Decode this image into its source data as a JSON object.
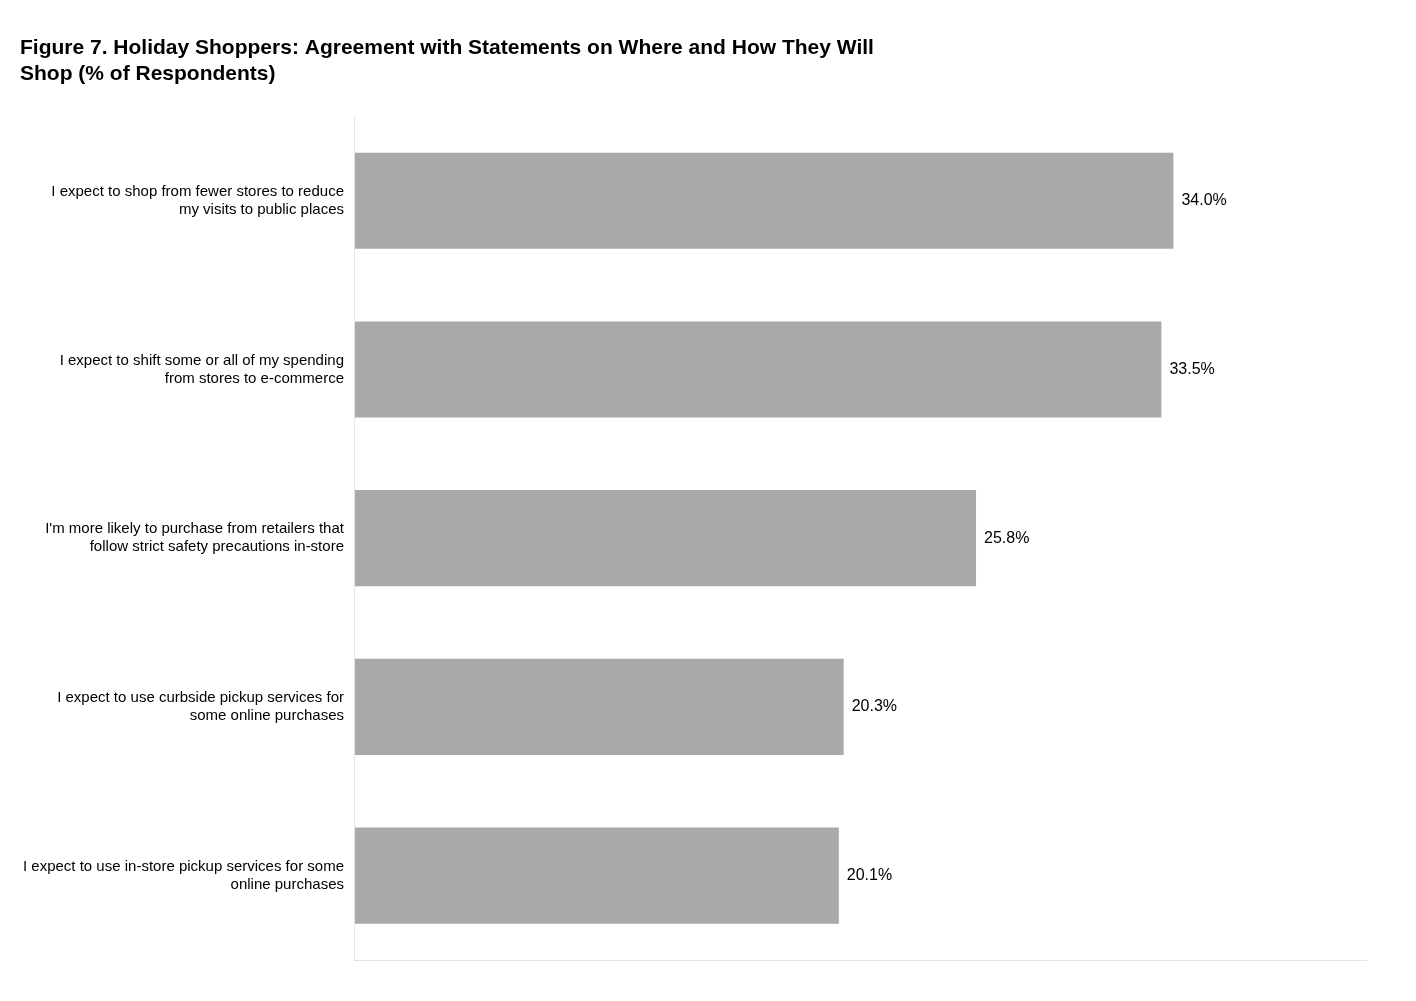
{
  "chart_data": {
    "type": "bar",
    "orientation": "horizontal",
    "title": "Figure 7. Holiday Shoppers: Agreement with Statements on Where and How They Will\nShop (% of Respondents)",
    "categories": [
      "I expect to use in-store pickup services for some\nonline purchases",
      "I expect to use curbside pickup services for\nsome online purchases",
      "I'm more likely to purchase from retailers that\nfollow strict safety precautions in-store",
      "I expect to shift some or all of my spending\nfrom stores to e-commerce",
      "I expect to shop from fewer stores to reduce\nmy visits to public places"
    ],
    "values": [
      20.1,
      20.3,
      25.8,
      33.5,
      34.0
    ],
    "value_labels": [
      "20.1%",
      "20.3%",
      "25.8%",
      "33.5%",
      "34.0%"
    ],
    "color": "#a9a9a9",
    "xlim": [
      0,
      42
    ],
    "grid": false,
    "data_labels": true,
    "tick_labels": "y"
  }
}
